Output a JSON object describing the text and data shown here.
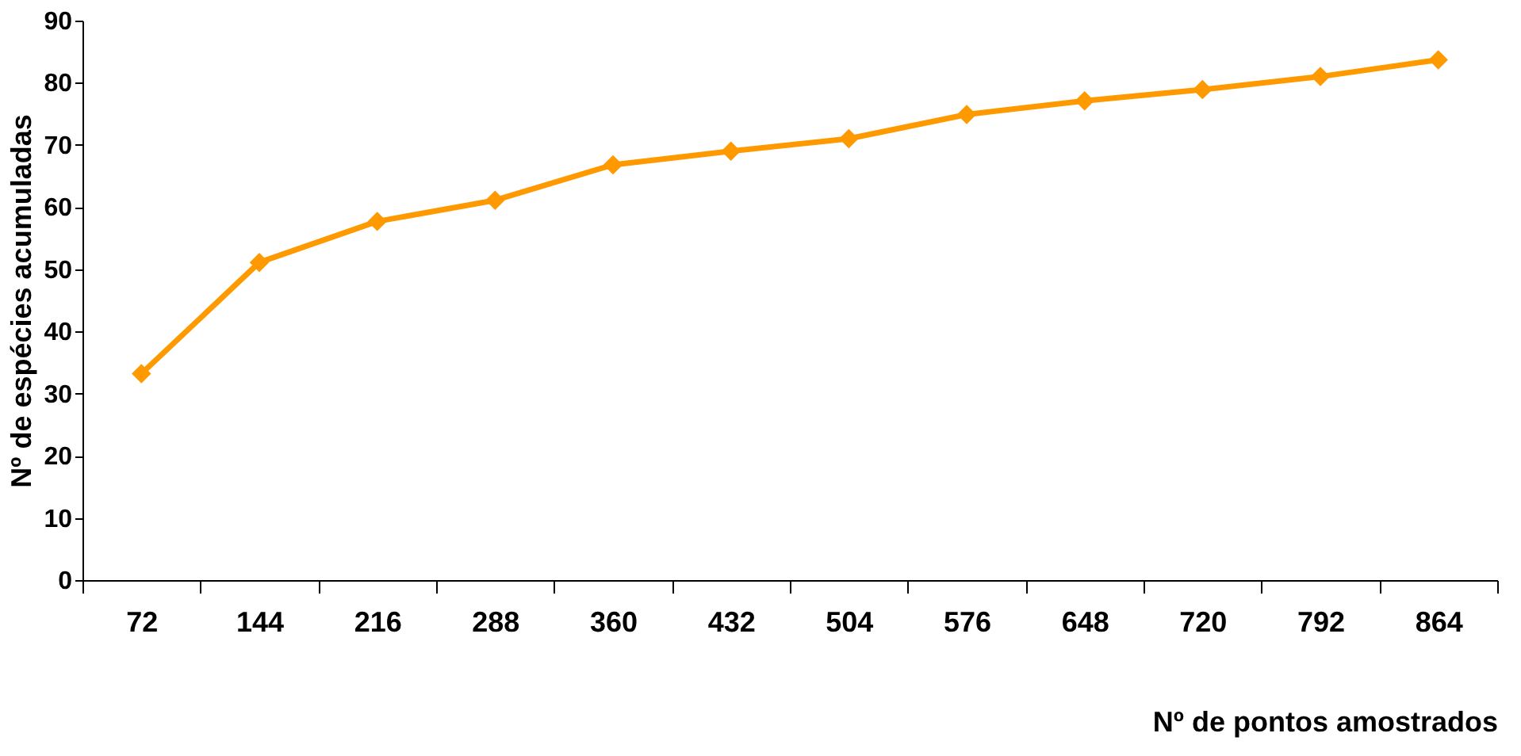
{
  "chart_data": {
    "type": "line",
    "xlabel": "Nº de pontos amostrados",
    "ylabel": "Nº de espécies acumuladas",
    "categories": [
      "72",
      "144",
      "216",
      "288",
      "360",
      "432",
      "504",
      "576",
      "648",
      "720",
      "792",
      "864"
    ],
    "series": [
      {
        "color": "#ff9900",
        "values": [
          33.2,
          51.1,
          57.7,
          61.1,
          66.8,
          69,
          71,
          74.9,
          77.1,
          78.9,
          81,
          83.7
        ]
      }
    ],
    "ylim": [
      0,
      90
    ],
    "yticks": [
      0,
      10,
      20,
      30,
      40,
      50,
      60,
      70,
      80,
      90
    ],
    "grid": false,
    "marker": "diamond",
    "line_style": "solid"
  }
}
